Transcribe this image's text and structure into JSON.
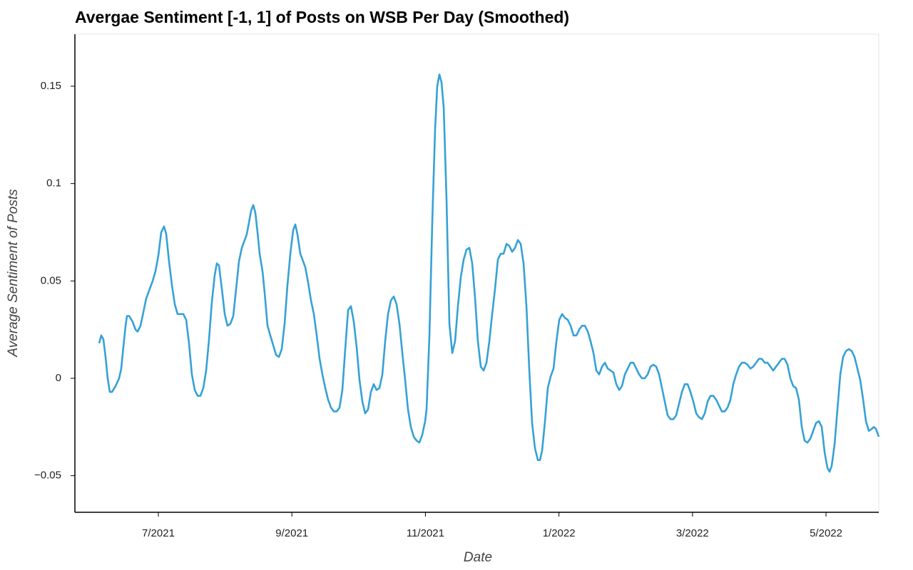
{
  "chart_data": {
    "type": "line",
    "title": "Avergae Sentiment [-1, 1] of Posts on WSB Per Day (Smoothed)",
    "x_label": "Date",
    "y_label": "Average Sentiment of Posts",
    "xlim": [
      5.75,
      17.79
    ],
    "xticks": [
      {
        "value": 7,
        "label": "7/2021"
      },
      {
        "value": 9,
        "label": "9/2021"
      },
      {
        "value": 11,
        "label": "11/2021"
      },
      {
        "value": 13,
        "label": "1/2022"
      },
      {
        "value": 15,
        "label": "3/2022"
      },
      {
        "value": 17,
        "label": "5/2022"
      }
    ],
    "ylim": [
      -0.0688,
      0.1767
    ],
    "yticks": [
      {
        "value": -0.05,
        "label": "−0.05"
      },
      0,
      0.05,
      0.1,
      0.15
    ],
    "grid": false,
    "x": [
      6.113,
      6.145,
      6.177,
      6.209,
      6.241,
      6.273,
      6.306,
      6.359,
      6.412,
      6.444,
      6.476,
      6.509,
      6.53,
      6.562,
      6.615,
      6.658,
      6.69,
      6.733,
      6.776,
      6.818,
      6.872,
      6.915,
      6.957,
      7.0,
      7.043,
      7.085,
      7.118,
      7.16,
      7.203,
      7.246,
      7.288,
      7.331,
      7.374,
      7.417,
      7.459,
      7.502,
      7.545,
      7.588,
      7.63,
      7.673,
      7.716,
      7.759,
      7.801,
      7.844,
      7.876,
      7.908,
      7.951,
      7.994,
      8.036,
      8.079,
      8.122,
      8.165,
      8.207,
      8.25,
      8.293,
      8.325,
      8.357,
      8.389,
      8.421,
      8.453,
      8.485,
      8.517,
      8.56,
      8.592,
      8.635,
      8.677,
      8.72,
      8.763,
      8.806,
      8.848,
      8.891,
      8.934,
      8.977,
      9.019,
      9.051,
      9.083,
      9.126,
      9.169,
      9.201,
      9.244,
      9.286,
      9.329,
      9.372,
      9.415,
      9.457,
      9.5,
      9.543,
      9.585,
      9.628,
      9.671,
      9.714,
      9.756,
      9.799,
      9.842,
      9.885,
      9.927,
      9.97,
      10.013,
      10.056,
      10.098,
      10.141,
      10.184,
      10.226,
      10.269,
      10.312,
      10.355,
      10.397,
      10.44,
      10.483,
      10.526,
      10.568,
      10.611,
      10.654,
      10.697,
      10.739,
      10.782,
      10.825,
      10.868,
      10.91,
      10.953,
      10.996,
      11.017,
      11.06,
      11.103,
      11.145,
      11.177,
      11.209,
      11.241,
      11.274,
      11.316,
      11.359,
      11.402,
      11.444,
      11.487,
      11.53,
      11.573,
      11.615,
      11.658,
      11.701,
      11.744,
      11.786,
      11.829,
      11.872,
      11.915,
      11.957,
      12.0,
      12.043,
      12.085,
      12.128,
      12.171,
      12.214,
      12.256,
      12.299,
      12.342,
      12.385,
      12.427,
      12.47,
      12.513,
      12.556,
      12.598,
      12.641,
      12.684,
      12.716,
      12.748,
      12.791,
      12.833,
      12.876,
      12.919,
      12.962,
      13.004,
      13.047,
      13.09,
      13.132,
      13.175,
      13.218,
      13.261,
      13.303,
      13.346,
      13.389,
      13.432,
      13.474,
      13.517,
      13.56,
      13.603,
      13.645,
      13.688,
      13.731,
      13.774,
      13.816,
      13.859,
      13.902,
      13.944,
      13.987,
      14.03,
      14.073,
      14.115,
      14.158,
      14.201,
      14.244,
      14.286,
      14.329,
      14.372,
      14.415,
      14.457,
      14.5,
      14.543,
      14.585,
      14.628,
      14.671,
      14.714,
      14.756,
      14.799,
      14.842,
      14.885,
      14.927,
      14.97,
      15.013,
      15.056,
      15.098,
      15.141,
      15.184,
      15.226,
      15.269,
      15.312,
      15.355,
      15.397,
      15.44,
      15.483,
      15.526,
      15.568,
      15.611,
      15.654,
      15.697,
      15.739,
      15.782,
      15.825,
      15.868,
      15.91,
      15.953,
      15.996,
      16.038,
      16.081,
      16.124,
      16.167,
      16.209,
      16.252,
      16.295,
      16.338,
      16.38,
      16.423,
      16.466,
      16.509,
      16.551,
      16.594,
      16.637,
      16.679,
      16.722,
      16.765,
      16.808,
      16.85,
      16.893,
      16.936,
      16.979,
      17.021,
      17.053,
      17.085,
      17.128,
      17.171,
      17.214,
      17.256,
      17.299,
      17.342,
      17.385,
      17.427,
      17.47,
      17.513,
      17.556,
      17.598,
      17.641,
      17.684,
      17.716,
      17.748,
      17.791
    ],
    "series": [
      {
        "color": "#35a1d6",
        "values": [
          0.018,
          0.022,
          0.02,
          0.011,
          0.0,
          -0.007,
          -0.007,
          -0.004,
          0.0,
          0.005,
          0.016,
          0.027,
          0.032,
          0.032,
          0.029,
          0.025,
          0.024,
          0.027,
          0.034,
          0.041,
          0.046,
          0.05,
          0.055,
          0.063,
          0.075,
          0.078,
          0.074,
          0.06,
          0.048,
          0.038,
          0.033,
          0.033,
          0.033,
          0.03,
          0.018,
          0.002,
          -0.006,
          -0.009,
          -0.009,
          -0.005,
          0.004,
          0.02,
          0.039,
          0.053,
          0.059,
          0.058,
          0.046,
          0.033,
          0.027,
          0.028,
          0.032,
          0.046,
          0.06,
          0.067,
          0.071,
          0.074,
          0.08,
          0.086,
          0.089,
          0.085,
          0.075,
          0.064,
          0.055,
          0.044,
          0.027,
          0.022,
          0.017,
          0.012,
          0.011,
          0.015,
          0.028,
          0.048,
          0.064,
          0.076,
          0.079,
          0.074,
          0.064,
          0.06,
          0.057,
          0.049,
          0.04,
          0.033,
          0.022,
          0.01,
          0.002,
          -0.005,
          -0.011,
          -0.015,
          -0.017,
          -0.017,
          -0.015,
          -0.006,
          0.015,
          0.035,
          0.037,
          0.029,
          0.016,
          -0.001,
          -0.012,
          -0.018,
          -0.016,
          -0.007,
          -0.003,
          -0.006,
          -0.005,
          0.002,
          0.019,
          0.033,
          0.04,
          0.042,
          0.038,
          0.028,
          0.013,
          -0.001,
          -0.016,
          -0.025,
          -0.03,
          -0.032,
          -0.033,
          -0.029,
          -0.022,
          -0.016,
          0.022,
          0.081,
          0.128,
          0.15,
          0.156,
          0.152,
          0.139,
          0.092,
          0.028,
          0.013,
          0.019,
          0.037,
          0.052,
          0.061,
          0.066,
          0.067,
          0.059,
          0.041,
          0.019,
          0.006,
          0.004,
          0.008,
          0.019,
          0.033,
          0.046,
          0.061,
          0.064,
          0.064,
          0.069,
          0.068,
          0.065,
          0.067,
          0.071,
          0.069,
          0.059,
          0.037,
          0.004,
          -0.023,
          -0.036,
          -0.042,
          -0.042,
          -0.037,
          -0.022,
          -0.005,
          0.001,
          0.005,
          0.019,
          0.03,
          0.033,
          0.031,
          0.03,
          0.027,
          0.022,
          0.022,
          0.025,
          0.027,
          0.027,
          0.024,
          0.019,
          0.013,
          0.004,
          0.002,
          0.006,
          0.008,
          0.005,
          0.004,
          0.003,
          -0.003,
          -0.006,
          -0.004,
          0.002,
          0.005,
          0.008,
          0.008,
          0.005,
          0.002,
          0.0,
          0.0,
          0.002,
          0.006,
          0.007,
          0.006,
          0.002,
          -0.005,
          -0.012,
          -0.019,
          -0.021,
          -0.021,
          -0.019,
          -0.013,
          -0.007,
          -0.003,
          -0.003,
          -0.007,
          -0.012,
          -0.018,
          -0.02,
          -0.021,
          -0.018,
          -0.012,
          -0.009,
          -0.009,
          -0.011,
          -0.014,
          -0.017,
          -0.017,
          -0.015,
          -0.011,
          -0.003,
          0.002,
          0.006,
          0.008,
          0.008,
          0.007,
          0.005,
          0.006,
          0.008,
          0.01,
          0.01,
          0.008,
          0.008,
          0.006,
          0.004,
          0.006,
          0.008,
          0.01,
          0.01,
          0.007,
          0.0,
          -0.004,
          -0.005,
          -0.011,
          -0.025,
          -0.032,
          -0.033,
          -0.031,
          -0.027,
          -0.023,
          -0.022,
          -0.025,
          -0.038,
          -0.046,
          -0.048,
          -0.045,
          -0.034,
          -0.016,
          0.002,
          0.011,
          0.014,
          0.015,
          0.014,
          0.011,
          0.005,
          -0.001,
          -0.011,
          -0.022,
          -0.027,
          -0.026,
          -0.025,
          -0.026,
          -0.03
        ]
      }
    ]
  }
}
